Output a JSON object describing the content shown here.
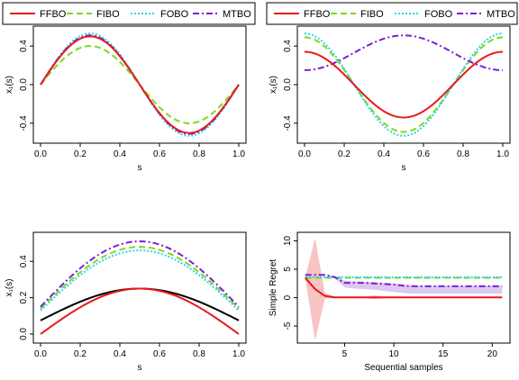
{
  "colors": {
    "FFBO": "#e8191c",
    "FIBO": "#7fd81f",
    "FOBO": "#28d7e8",
    "MTBO": "#7a1fd6",
    "true_fn": "#000000",
    "ffbo_band": "#f7b8b8",
    "mtbo_band": "#d9c2f0"
  },
  "legend": {
    "items": [
      "FFBO",
      "FIBO",
      "FOBO",
      "MTBO"
    ]
  },
  "chart_data": [
    {
      "type": "line",
      "xlabel": "s",
      "ylabel": "x₁(s)",
      "xlim": [
        0,
        1
      ],
      "ylim": [
        -0.55,
        0.55
      ],
      "xticks": [
        "0.0",
        "0.2",
        "0.4",
        "0.6",
        "0.8",
        "1.0"
      ],
      "yticks": [
        "-0.4",
        "0.0",
        "0.4"
      ],
      "series": [
        {
          "name": "FFBO",
          "function": "0.5·sin(2πs)"
        },
        {
          "name": "FIBO",
          "function": "0.4·sin(2πs)"
        },
        {
          "name": "FOBO",
          "function": "0.53·sin(2πs)"
        },
        {
          "name": "MTBO",
          "function": "0.51·sin(2πs)"
        }
      ]
    },
    {
      "type": "line",
      "xlabel": "s",
      "ylabel": "x₁(s)",
      "xlim": [
        0,
        1
      ],
      "ylim": [
        -0.55,
        0.55
      ],
      "xticks": [
        "0.0",
        "0.2",
        "0.4",
        "0.6",
        "0.8",
        "1.0"
      ],
      "yticks": [
        "-0.4",
        "0.0",
        "0.4"
      ],
      "series": [
        {
          "name": "FFBO",
          "function": "0.34·cos(2πs)"
        },
        {
          "name": "FIBO",
          "function": "0.49·cos(2πs)"
        },
        {
          "name": "FOBO",
          "function": "0.53·cos(2πs)"
        },
        {
          "name": "MTBO",
          "function": "0.33 − 0.18·cos(2πs)"
        }
      ]
    },
    {
      "type": "line",
      "xlabel": "s",
      "ylabel": "x₁(s)",
      "xlim": [
        0,
        1
      ],
      "ylim": [
        -0.02,
        0.53
      ],
      "xticks": [
        "0.0",
        "0.2",
        "0.4",
        "0.6",
        "0.8",
        "1.0"
      ],
      "yticks": [
        "0.0",
        "0.2",
        "0.4"
      ],
      "series": [
        {
          "name": "FFBO",
          "function": "0.25·sin(πs)"
        },
        {
          "name": "FIBO",
          "function": "0.14 + 0.34·sin(πs)"
        },
        {
          "name": "FOBO",
          "function": "0.13 + 0.33·sin(πs)"
        },
        {
          "name": "MTBO",
          "function": "0.15 + 0.36·sin(πs)"
        },
        {
          "name": "",
          "function": "0.075 + 0.175·sin(πs)"
        }
      ]
    },
    {
      "type": "line",
      "xlabel": "Sequential samples",
      "ylabel": "Simple Regret",
      "xlim": [
        0.2,
        21.8
      ],
      "ylim": [
        -8,
        11.5
      ],
      "xticks": [
        "5",
        "10",
        "15",
        "20"
      ],
      "yticks": [
        "-5",
        "0",
        "5",
        "10"
      ],
      "x": [
        1,
        2,
        3,
        4,
        5,
        6,
        7,
        8,
        9,
        10,
        11,
        12,
        13,
        14,
        15,
        16,
        17,
        18,
        19,
        20,
        21
      ],
      "series": [
        {
          "name": "FFBO",
          "values": [
            3.5,
            1.5,
            0.3,
            0.05,
            0.05,
            0.05,
            0.05,
            0.05,
            0.05,
            0.05,
            0.05,
            0.05,
            0.05,
            0.05,
            0.05,
            0.05,
            0.05,
            0.05,
            0.05,
            0.05,
            0.05
          ],
          "band_lower": [
            3.5,
            -7.5,
            -0.2,
            -0.1,
            -0.1,
            -0.1,
            -0.1,
            -0.3,
            -0.1,
            -0.1,
            -0.05,
            -0.05,
            -0.05,
            -0.05,
            -0.05,
            -0.05,
            -0.05,
            -0.05,
            -0.05,
            -0.05,
            -0.05
          ],
          "band_upper": [
            3.5,
            10.5,
            0.8,
            0.2,
            0.2,
            0.2,
            0.2,
            0.4,
            0.2,
            0.2,
            0.1,
            0.1,
            0.1,
            0.1,
            0.1,
            0.1,
            0.1,
            0.1,
            0.1,
            0.1,
            0.1
          ]
        },
        {
          "name": "FIBO",
          "values": [
            3.5,
            3.5,
            3.5,
            3.5,
            3.5,
            3.5,
            3.5,
            3.5,
            3.5,
            3.5,
            3.5,
            3.5,
            3.5,
            3.5,
            3.5,
            3.5,
            3.5,
            3.5,
            3.5,
            3.5,
            3.5
          ]
        },
        {
          "name": "FOBO",
          "values": [
            3.6,
            3.6,
            3.6,
            3.6,
            3.6,
            3.6,
            3.6,
            3.6,
            3.6,
            3.6,
            3.6,
            3.6,
            3.6,
            3.6,
            3.6,
            3.6,
            3.6,
            3.6,
            3.6,
            3.6,
            3.6
          ]
        },
        {
          "name": "MTBO",
          "values": [
            4.0,
            4.0,
            4.0,
            3.6,
            2.6,
            2.6,
            2.6,
            2.5,
            2.4,
            2.3,
            2.1,
            2.0,
            2.0,
            2.0,
            2.0,
            2.0,
            2.0,
            2.0,
            2.0,
            2.0,
            2.0
          ],
          "band_lower": [
            4.0,
            4.0,
            4.0,
            3.4,
            1.8,
            1.6,
            1.5,
            1.4,
            1.2,
            1.0,
            0.8,
            0.7,
            0.7,
            0.7,
            0.7,
            0.7,
            0.7,
            0.7,
            0.7,
            0.7,
            0.7
          ],
          "band_upper": [
            4.0,
            4.0,
            4.0,
            3.8,
            3.0,
            2.9,
            2.8,
            2.7,
            2.6,
            2.5,
            2.3,
            2.1,
            2.1,
            2.1,
            2.1,
            2.1,
            2.1,
            2.1,
            2.1,
            2.1,
            2.1
          ]
        }
      ]
    }
  ]
}
